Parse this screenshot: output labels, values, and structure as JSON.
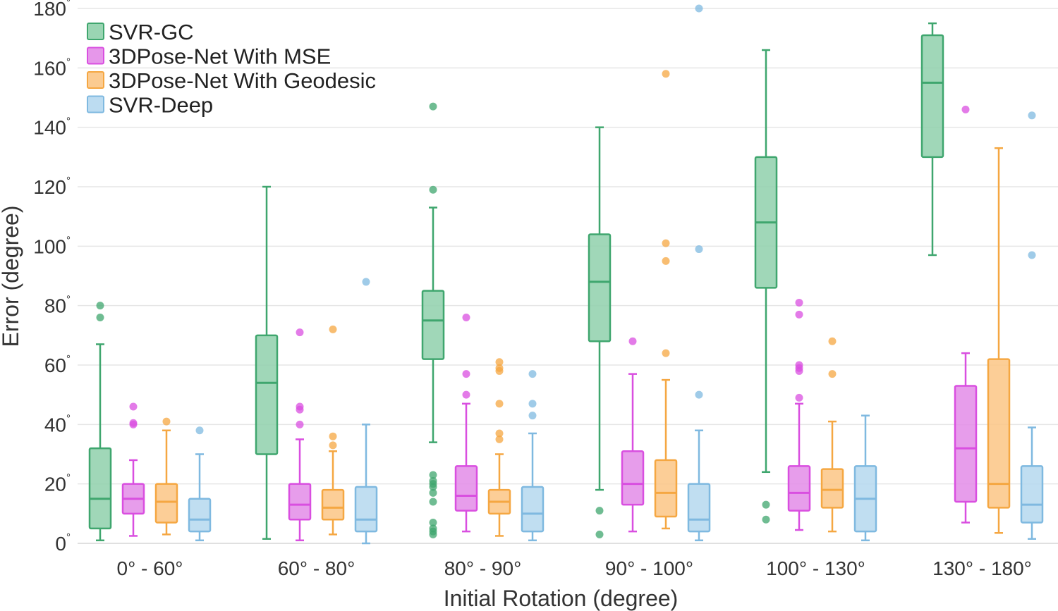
{
  "chart_data": {
    "type": "box",
    "xlabel": "Initial Rotation (degree)",
    "ylabel": "Error (degree)",
    "ylim": [
      0,
      180
    ],
    "yticks": [
      0,
      20,
      40,
      60,
      80,
      100,
      120,
      140,
      160,
      180
    ],
    "degree_symbol": "°",
    "grid": true,
    "legend_position": "top-left",
    "categories": [
      "0° - 60°",
      "60° - 80°",
      "80° - 90°",
      "90° - 100°",
      "100° - 130°",
      "130° - 180°"
    ],
    "series": [
      {
        "name": "SVR-GC",
        "color": "#3fa66e",
        "fill": "#8fd0ab",
        "boxes": [
          {
            "min": 1,
            "q1": 5,
            "median": 15,
            "q3": 32,
            "max": 67,
            "outliers": [
              76,
              80
            ]
          },
          {
            "min": 1.5,
            "q1": 30,
            "median": 54,
            "q3": 70,
            "max": 120,
            "outliers": []
          },
          {
            "min": 34,
            "q1": 62,
            "median": 75,
            "q3": 85,
            "max": 113,
            "outliers": [
              3,
              4,
              5,
              7,
              14,
              17,
              19,
              20,
              21,
              23,
              119,
              147
            ]
          },
          {
            "min": 18,
            "q1": 68,
            "median": 88,
            "q3": 104,
            "max": 140,
            "outliers": [
              3,
              11
            ]
          },
          {
            "min": 24,
            "q1": 86,
            "median": 108,
            "q3": 130,
            "max": 166,
            "outliers": [
              8,
              13
            ]
          },
          {
            "min": 97,
            "q1": 130,
            "median": 155,
            "q3": 171,
            "max": 175,
            "outliers": []
          }
        ]
      },
      {
        "name": "3DPose-Net With MSE",
        "color": "#d94fe0",
        "fill": "#e38ce8",
        "boxes": [
          {
            "min": 2.5,
            "q1": 10,
            "median": 15,
            "q3": 20,
            "max": 28,
            "outliers": [
              40,
              40.5,
              46
            ]
          },
          {
            "min": 1,
            "q1": 8,
            "median": 13,
            "q3": 20,
            "max": 35,
            "outliers": [
              40,
              45,
              46,
              71
            ]
          },
          {
            "min": 4,
            "q1": 11,
            "median": 16,
            "q3": 26,
            "max": 47,
            "outliers": [
              50,
              57,
              76
            ]
          },
          {
            "min": 4,
            "q1": 13,
            "median": 20,
            "q3": 31,
            "max": 57,
            "outliers": [
              68
            ]
          },
          {
            "min": 4.5,
            "q1": 11,
            "median": 17,
            "q3": 26,
            "max": 47,
            "outliers": [
              49,
              58,
              59,
              60,
              77,
              81
            ]
          },
          {
            "min": 7,
            "q1": 14,
            "median": 32,
            "q3": 53,
            "max": 64,
            "outliers": [
              146
            ]
          }
        ]
      },
      {
        "name": "3DPose-Net With Geodesic",
        "color": "#f5a742",
        "fill": "#fbc585",
        "boxes": [
          {
            "min": 3,
            "q1": 7,
            "median": 14,
            "q3": 20,
            "max": 38,
            "outliers": [
              41
            ]
          },
          {
            "min": 3,
            "q1": 8,
            "median": 12,
            "q3": 18,
            "max": 31,
            "outliers": [
              33,
              36,
              72
            ]
          },
          {
            "min": 2.5,
            "q1": 10,
            "median": 14,
            "q3": 18,
            "max": 30,
            "outliers": [
              35,
              37,
              47,
              58,
              59,
              61
            ]
          },
          {
            "min": 5,
            "q1": 9,
            "median": 17,
            "q3": 28,
            "max": 55,
            "outliers": [
              64,
              95,
              101,
              158
            ]
          },
          {
            "min": 4,
            "q1": 12,
            "median": 18,
            "q3": 25,
            "max": 41,
            "outliers": [
              57,
              68
            ]
          },
          {
            "min": 3.5,
            "q1": 12,
            "median": 20,
            "q3": 62,
            "max": 133,
            "outliers": []
          }
        ]
      },
      {
        "name": "SVR-Deep",
        "color": "#7fb9e0",
        "fill": "#b5d8ef",
        "boxes": [
          {
            "min": 1,
            "q1": 4,
            "median": 8,
            "q3": 15,
            "max": 30,
            "outliers": [
              38
            ]
          },
          {
            "min": 0,
            "q1": 4,
            "median": 8,
            "q3": 19,
            "max": 40,
            "outliers": [
              88
            ]
          },
          {
            "min": 1,
            "q1": 4,
            "median": 10,
            "q3": 19,
            "max": 37,
            "outliers": [
              43,
              47,
              57
            ]
          },
          {
            "min": 1,
            "q1": 4,
            "median": 8,
            "q3": 20,
            "max": 38,
            "outliers": [
              50,
              99,
              180
            ]
          },
          {
            "min": 1,
            "q1": 4,
            "median": 15,
            "q3": 26,
            "max": 43,
            "outliers": []
          },
          {
            "min": 1.5,
            "q1": 7,
            "median": 13,
            "q3": 26,
            "max": 39,
            "outliers": [
              97,
              144
            ]
          }
        ]
      }
    ]
  }
}
